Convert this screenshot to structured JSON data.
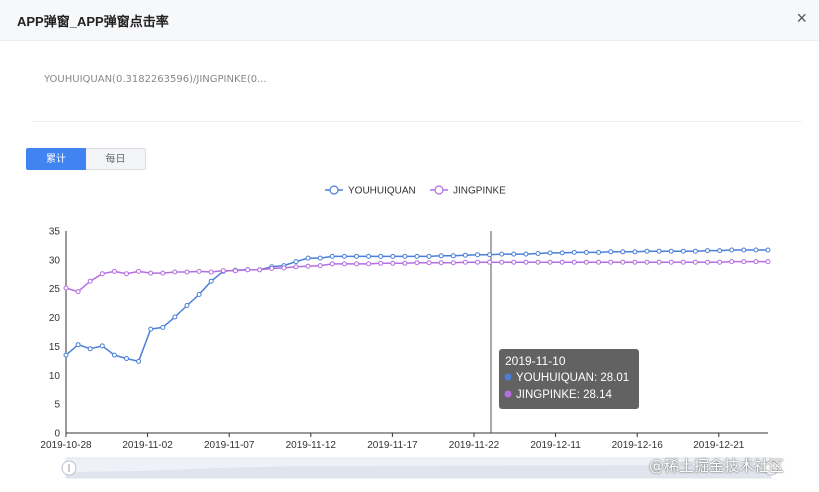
{
  "dialog": {
    "title": "APP弹窗_APP弹窗点击率",
    "close_icon": "×",
    "formula": "YOUHUIQUAN(0.3182263596)/JINGPINKE(0..."
  },
  "toggle": {
    "cumulative": "累计",
    "daily": "每日"
  },
  "watermark": "@稀土掘金技术社区",
  "colors": {
    "accent": "#3f84f0",
    "series1": "#4a7fd8",
    "series2": "#b56ee0",
    "tooltip_bg": "#555555"
  },
  "chart_data": {
    "type": "line",
    "x": [
      "2019-10-28",
      "2019-10-29",
      "2019-10-30",
      "2019-10-31",
      "2019-11-01",
      "2019-11-02",
      "2019-11-03",
      "2019-11-04",
      "2019-11-05",
      "2019-11-06",
      "2019-11-07",
      "2019-11-08",
      "2019-11-09",
      "2019-11-10",
      "2019-11-11",
      "2019-11-12",
      "2019-11-13",
      "2019-11-14",
      "2019-11-15",
      "2019-11-16",
      "2019-11-17",
      "2019-11-18",
      "2019-11-19",
      "2019-11-20",
      "2019-11-21",
      "2019-11-22",
      "2019-11-23",
      "2019-11-24",
      "2019-11-25",
      "2019-11-26",
      "2019-11-27",
      "2019-11-28",
      "2019-11-29",
      "2019-11-30",
      "2019-12-01",
      "2019-12-02",
      "2019-12-03",
      "2019-12-04",
      "2019-12-05",
      "2019-12-06",
      "2019-12-07",
      "2019-12-08",
      "2019-12-09",
      "2019-12-10",
      "2019-12-11",
      "2019-12-12",
      "2019-12-13",
      "2019-12-14",
      "2019-12-15",
      "2019-12-16",
      "2019-12-17",
      "2019-12-18",
      "2019-12-19",
      "2019-12-20",
      "2019-12-21",
      "2019-12-22",
      "2019-12-23",
      "2019-12-24",
      "2019-12-25"
    ],
    "x_tick_labels": [
      "2019-10-28",
      "2019-11-02",
      "2019-11-07",
      "2019-11-12",
      "2019-11-17",
      "2019-11-22",
      "2019-12-11",
      "2019-12-16",
      "2019-12-21"
    ],
    "y_ticks": [
      0,
      5,
      10,
      15,
      20,
      25,
      30,
      35
    ],
    "ylim": [
      0,
      35
    ],
    "legend": {
      "placement": "top-center"
    },
    "series": [
      {
        "name": "YOUHUIQUAN",
        "values": [
          13.5,
          15.3,
          14.6,
          15.1,
          13.5,
          12.9,
          12.4,
          18.0,
          18.3,
          20.1,
          22.1,
          24.0,
          26.3,
          28.01,
          28.2,
          28.3,
          28.3,
          28.8,
          29.0,
          29.7,
          30.3,
          30.3,
          30.6,
          30.6,
          30.6,
          30.6,
          30.6,
          30.6,
          30.6,
          30.6,
          30.6,
          30.7,
          30.7,
          30.8,
          30.9,
          30.9,
          31.0,
          31.0,
          31.0,
          31.1,
          31.2,
          31.2,
          31.3,
          31.3,
          31.3,
          31.4,
          31.4,
          31.4,
          31.5,
          31.5,
          31.5,
          31.5,
          31.5,
          31.6,
          31.6,
          31.7,
          31.7,
          31.7,
          31.7
        ]
      },
      {
        "name": "JINGPINKE",
        "values": [
          25.1,
          24.5,
          26.3,
          27.6,
          28.0,
          27.6,
          28.0,
          27.7,
          27.7,
          27.9,
          27.9,
          28.0,
          27.9,
          28.14,
          28.1,
          28.3,
          28.3,
          28.5,
          28.6,
          28.8,
          28.9,
          29.0,
          29.3,
          29.3,
          29.3,
          29.3,
          29.4,
          29.4,
          29.4,
          29.5,
          29.5,
          29.5,
          29.5,
          29.6,
          29.6,
          29.6,
          29.6,
          29.6,
          29.6,
          29.6,
          29.6,
          29.6,
          29.6,
          29.6,
          29.6,
          29.6,
          29.6,
          29.6,
          29.6,
          29.6,
          29.6,
          29.6,
          29.6,
          29.6,
          29.6,
          29.7,
          29.7,
          29.7,
          29.7
        ]
      }
    ],
    "tooltip": {
      "date": "2019-11-10",
      "rows": [
        {
          "name": "YOUHUIQUAN",
          "value": "28.01"
        },
        {
          "name": "JINGPINKE",
          "value": "28.14"
        }
      ]
    }
  }
}
